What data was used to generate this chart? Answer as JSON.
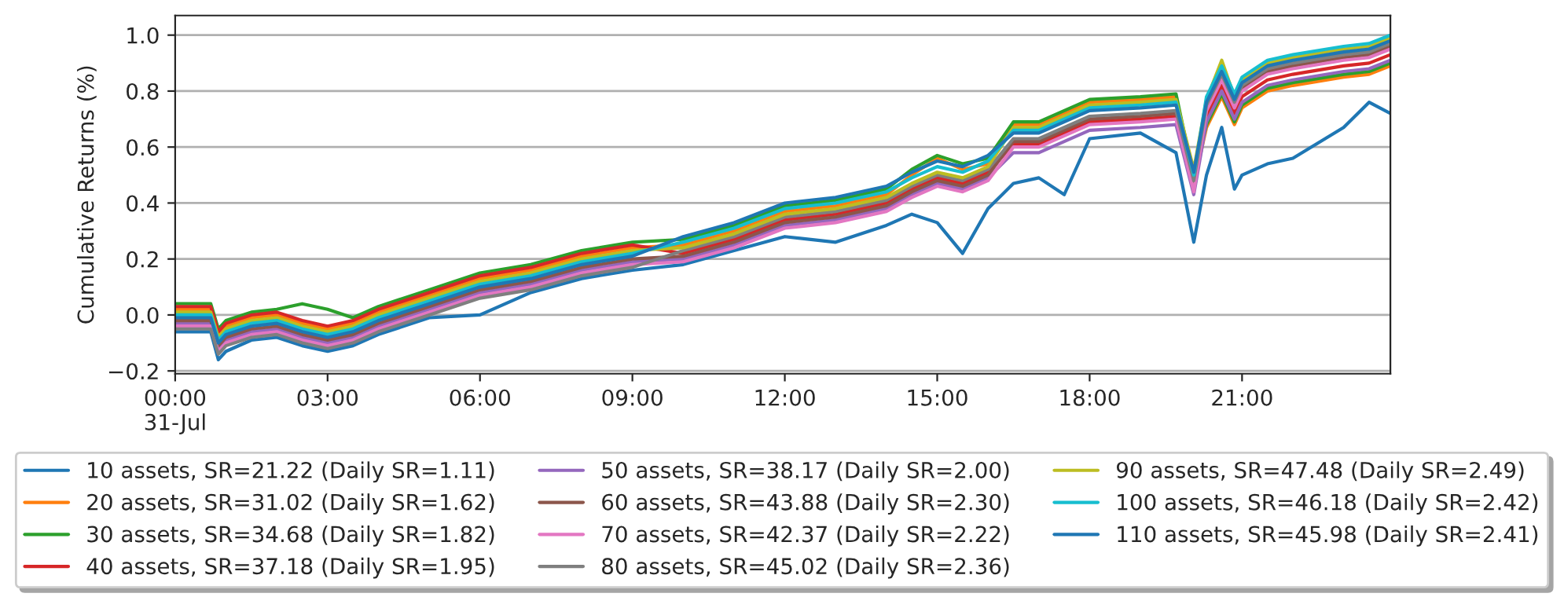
{
  "chart_data": {
    "type": "line",
    "ylabel": "Cumulative Returns (%)",
    "x": [
      0,
      0.5,
      0.7,
      0.85,
      1,
      1.5,
      2,
      2.5,
      3,
      3.5,
      4,
      5,
      6,
      7,
      8,
      9,
      10,
      11,
      12,
      13,
      14,
      14.5,
      15,
      15.5,
      16,
      16.5,
      17,
      17.5,
      18,
      19,
      19.7,
      20.05,
      20.3,
      20.6,
      20.85,
      21,
      21.5,
      22,
      23,
      23.5,
      23.92
    ],
    "xlim": [
      0,
      23.92
    ],
    "xticks": [
      {
        "value": 0,
        "label": "00:00\n31-Jul"
      },
      {
        "value": 3,
        "label": "03:00"
      },
      {
        "value": 6,
        "label": "06:00"
      },
      {
        "value": 9,
        "label": "09:00"
      },
      {
        "value": 12,
        "label": "12:00"
      },
      {
        "value": 15,
        "label": "15:00"
      },
      {
        "value": 18,
        "label": "18:00"
      },
      {
        "value": 21,
        "label": "21:00"
      }
    ],
    "ylim": [
      -0.21,
      1.07
    ],
    "yticks": [
      {
        "value": -0.2,
        "label": "−0.2"
      },
      {
        "value": 0,
        "label": "0.0"
      },
      {
        "value": 0.2,
        "label": "0.2"
      },
      {
        "value": 0.4,
        "label": "0.4"
      },
      {
        "value": 0.6,
        "label": "0.6"
      },
      {
        "value": 0.8,
        "label": "0.8"
      },
      {
        "value": 1.0,
        "label": "1.0"
      }
    ],
    "grid": "y",
    "legend": "bottom",
    "marker": "none",
    "line_style": "solid",
    "series": [
      {
        "name": "10 assets, SR=21.22 (Daily SR=1.11)",
        "color": "#1f77b4",
        "values": [
          -0.06,
          -0.06,
          -0.06,
          -0.16,
          -0.13,
          -0.09,
          -0.08,
          -0.11,
          -0.13,
          -0.11,
          -0.07,
          -0.01,
          0.0,
          0.08,
          0.13,
          0.16,
          0.18,
          0.23,
          0.28,
          0.26,
          0.32,
          0.36,
          0.33,
          0.22,
          0.38,
          0.47,
          0.49,
          0.43,
          0.63,
          0.65,
          0.58,
          0.26,
          0.5,
          0.67,
          0.45,
          0.5,
          0.54,
          0.56,
          0.67,
          0.76,
          0.72
        ]
      },
      {
        "name": "20 assets, SR=31.02 (Daily SR=1.62)",
        "color": "#ff7f0e",
        "values": [
          0.02,
          0.02,
          0.02,
          -0.07,
          -0.04,
          -0.01,
          0,
          -0.03,
          -0.05,
          -0.03,
          0.01,
          0.07,
          0.13,
          0.16,
          0.21,
          0.24,
          0.25,
          0.3,
          0.37,
          0.39,
          0.43,
          0.5,
          0.56,
          0.52,
          0.54,
          0.68,
          0.68,
          0.72,
          0.76,
          0.77,
          0.78,
          0.47,
          0.67,
          0.78,
          0.68,
          0.74,
          0.8,
          0.82,
          0.85,
          0.86,
          0.89
        ]
      },
      {
        "name": "30 assets, SR=34.68 (Daily SR=1.82)",
        "color": "#2ca02c",
        "values": [
          0.04,
          0.04,
          0.04,
          -0.05,
          -0.02,
          0.01,
          0.02,
          0.04,
          0.02,
          -0.01,
          0.03,
          0.09,
          0.15,
          0.18,
          0.23,
          0.26,
          0.27,
          0.32,
          0.39,
          0.41,
          0.45,
          0.52,
          0.57,
          0.54,
          0.56,
          0.69,
          0.69,
          0.73,
          0.77,
          0.78,
          0.79,
          0.49,
          0.68,
          0.79,
          0.69,
          0.75,
          0.81,
          0.83,
          0.86,
          0.87,
          0.9
        ]
      },
      {
        "name": "40 assets, SR=37.18 (Daily SR=1.95)",
        "color": "#d62728",
        "values": [
          0.03,
          0.03,
          0.03,
          -0.06,
          -0.03,
          0,
          0.01,
          -0.02,
          -0.04,
          -0.02,
          0.02,
          0.08,
          0.14,
          0.17,
          0.22,
          0.25,
          0.22,
          0.27,
          0.34,
          0.36,
          0.4,
          0.45,
          0.49,
          0.47,
          0.51,
          0.61,
          0.61,
          0.65,
          0.69,
          0.7,
          0.71,
          0.46,
          0.71,
          0.82,
          0.72,
          0.78,
          0.84,
          0.86,
          0.89,
          0.9,
          0.93
        ]
      },
      {
        "name": "50 assets, SR=38.17 (Daily SR=2.00)",
        "color": "#9467bd",
        "values": [
          -0.03,
          -0.03,
          -0.03,
          -0.12,
          -0.09,
          -0.06,
          -0.05,
          -0.08,
          -0.1,
          -0.08,
          -0.04,
          0.02,
          0.08,
          0.11,
          0.16,
          0.19,
          0.2,
          0.25,
          0.32,
          0.34,
          0.38,
          0.43,
          0.47,
          0.45,
          0.49,
          0.58,
          0.58,
          0.62,
          0.66,
          0.67,
          0.68,
          0.43,
          0.69,
          0.8,
          0.7,
          0.76,
          0.82,
          0.84,
          0.87,
          0.88,
          0.91
        ]
      },
      {
        "name": "60 assets, SR=43.88 (Daily SR=2.30)",
        "color": "#8c564b",
        "values": [
          -0.02,
          -0.02,
          -0.02,
          -0.11,
          -0.08,
          -0.05,
          -0.04,
          -0.07,
          -0.09,
          -0.07,
          -0.03,
          0.03,
          0.09,
          0.12,
          0.17,
          0.2,
          0.21,
          0.26,
          0.33,
          0.35,
          0.39,
          0.44,
          0.48,
          0.46,
          0.5,
          0.62,
          0.62,
          0.66,
          0.7,
          0.71,
          0.72,
          0.45,
          0.74,
          0.85,
          0.75,
          0.81,
          0.87,
          0.89,
          0.92,
          0.93,
          0.96
        ]
      },
      {
        "name": "70 assets, SR=42.37 (Daily SR=2.22)",
        "color": "#e377c2",
        "values": [
          -0.04,
          -0.04,
          -0.04,
          -0.13,
          -0.1,
          -0.07,
          -0.06,
          -0.09,
          -0.11,
          -0.09,
          -0.05,
          0.01,
          0.07,
          0.1,
          0.15,
          0.18,
          0.19,
          0.24,
          0.31,
          0.33,
          0.37,
          0.42,
          0.46,
          0.44,
          0.48,
          0.6,
          0.6,
          0.64,
          0.68,
          0.69,
          0.7,
          0.44,
          0.73,
          0.84,
          0.74,
          0.8,
          0.86,
          0.88,
          0.91,
          0.92,
          0.95
        ]
      },
      {
        "name": "80 assets, SR=45.02 (Daily SR=2.36)",
        "color": "#7f7f7f",
        "values": [
          -0.05,
          -0.05,
          -0.05,
          -0.14,
          -0.11,
          -0.08,
          -0.07,
          -0.1,
          -0.12,
          -0.1,
          -0.06,
          0,
          0.06,
          0.09,
          0.14,
          0.17,
          0.23,
          0.28,
          0.35,
          0.37,
          0.41,
          0.46,
          0.5,
          0.48,
          0.52,
          0.63,
          0.63,
          0.67,
          0.71,
          0.72,
          0.73,
          0.48,
          0.75,
          0.86,
          0.76,
          0.82,
          0.88,
          0.9,
          0.93,
          0.94,
          0.97
        ]
      },
      {
        "name": "90 assets, SR=47.48 (Daily SR=2.49)",
        "color": "#bcbd22",
        "values": [
          0.01,
          0.01,
          0.01,
          -0.08,
          -0.05,
          -0.02,
          -0.01,
          -0.04,
          -0.06,
          -0.04,
          0,
          0.06,
          0.12,
          0.15,
          0.2,
          0.23,
          0.24,
          0.29,
          0.36,
          0.38,
          0.42,
          0.47,
          0.51,
          0.49,
          0.53,
          0.67,
          0.67,
          0.71,
          0.75,
          0.76,
          0.77,
          0.52,
          0.77,
          0.91,
          0.78,
          0.84,
          0.9,
          0.92,
          0.95,
          0.96,
          0.99
        ]
      },
      {
        "name": "100 assets, SR=46.18 (Daily SR=2.42)",
        "color": "#17becf",
        "values": [
          0,
          0,
          0,
          -0.09,
          -0.06,
          -0.03,
          -0.02,
          -0.05,
          -0.07,
          -0.05,
          -0.01,
          0.05,
          0.11,
          0.14,
          0.19,
          0.22,
          0.26,
          0.31,
          0.38,
          0.4,
          0.44,
          0.49,
          0.53,
          0.51,
          0.55,
          0.66,
          0.66,
          0.7,
          0.74,
          0.75,
          0.76,
          0.5,
          0.78,
          0.89,
          0.79,
          0.85,
          0.91,
          0.93,
          0.96,
          0.97,
          1.0
        ]
      },
      {
        "name": "110 assets, SR=45.98 (Daily SR=2.41)",
        "color": "#1f77b4",
        "values": [
          -0.01,
          -0.01,
          -0.01,
          -0.1,
          -0.07,
          -0.04,
          -0.03,
          -0.06,
          -0.08,
          -0.06,
          -0.02,
          0.04,
          0.1,
          0.13,
          0.18,
          0.21,
          0.28,
          0.33,
          0.4,
          0.42,
          0.46,
          0.51,
          0.55,
          0.53,
          0.57,
          0.65,
          0.65,
          0.69,
          0.73,
          0.74,
          0.75,
          0.51,
          0.76,
          0.87,
          0.77,
          0.83,
          0.89,
          0.91,
          0.94,
          0.95,
          0.98
        ]
      }
    ]
  }
}
